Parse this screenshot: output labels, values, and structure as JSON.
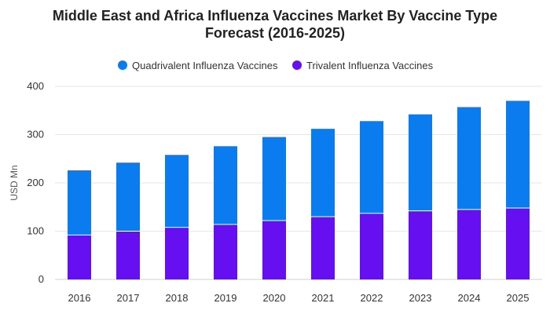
{
  "chart_data": {
    "type": "bar",
    "stacked": true,
    "title_line1": "Middle East and Africa Influenza Vaccines Market By Vaccine Type",
    "title_line2": "Forecast (2016-2025)",
    "xlabel": "",
    "ylabel": "USD Mn",
    "ylim": [
      0,
      400
    ],
    "yticks": [
      0,
      100,
      200,
      300,
      400
    ],
    "grid": true,
    "legend_position": "top-center",
    "categories": [
      "2016",
      "2017",
      "2018",
      "2019",
      "2020",
      "2021",
      "2022",
      "2023",
      "2024",
      "2025"
    ],
    "series": [
      {
        "name": "Quadrivalent Influenza Vaccines",
        "color": "#0a7cf0",
        "values": [
          134,
          142,
          150,
          162,
          173,
          182,
          191,
          200,
          212,
          222
        ]
      },
      {
        "name": "Trivalent Influenza Vaccines",
        "color": "#6610f2",
        "values": [
          92,
          100,
          108,
          114,
          122,
          130,
          137,
          142,
          145,
          148
        ]
      }
    ]
  }
}
